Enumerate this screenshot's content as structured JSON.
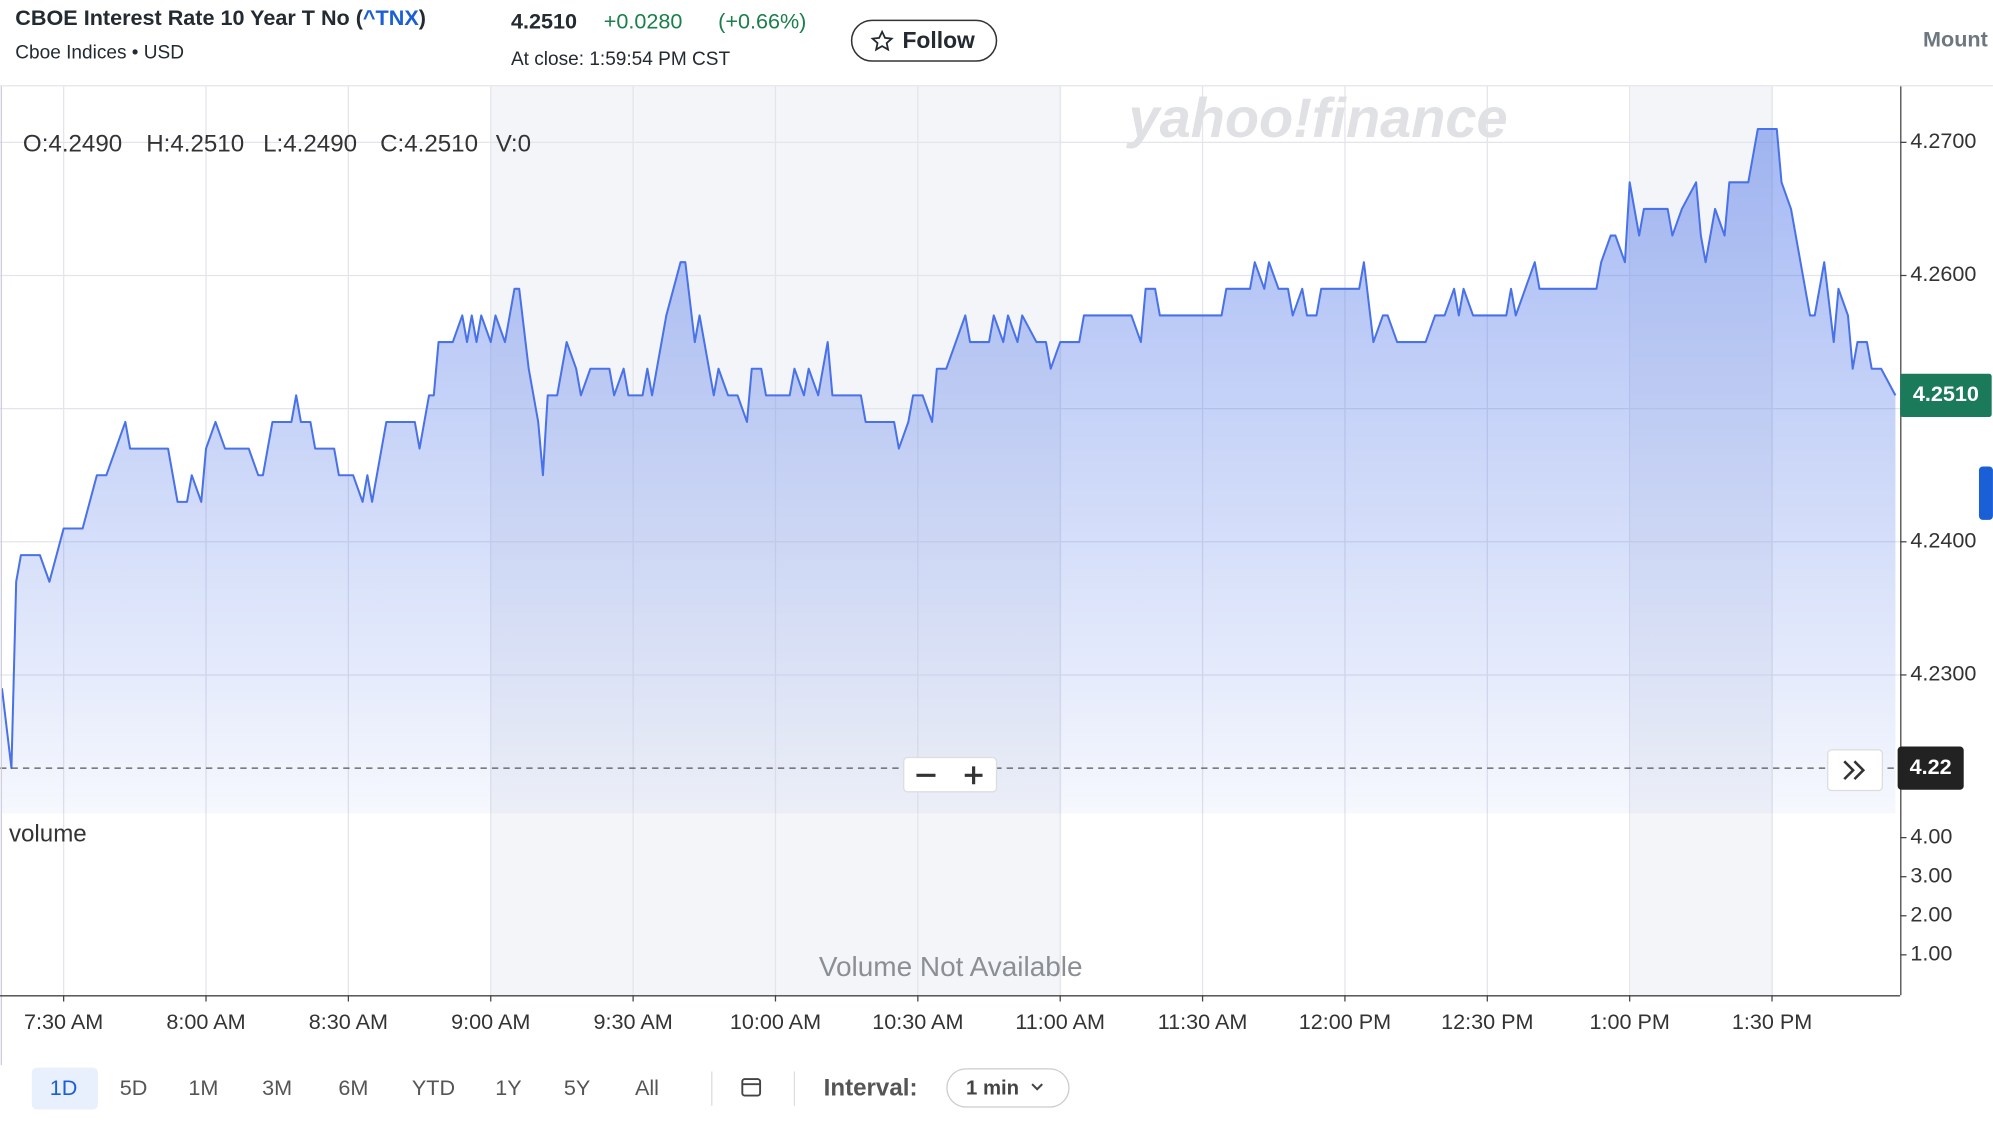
{
  "header": {
    "title": "CBOE Interest Rate 10 Year T No (",
    "symbol": "^TNX",
    "title_end": ")",
    "subtitle": "Cboe Indices • USD",
    "price": "4.2510",
    "change": "+0.0280",
    "change_percent": "(+0.66%)",
    "close_time": "At close: 1:59:54 PM CST",
    "follow": "Follow",
    "next_tab": "Mount"
  },
  "chart_data": {
    "type": "line",
    "watermark": "yahoo!finance",
    "ohlc": [
      "O:4.2490",
      "H:4.2510",
      "L:4.2490",
      "C:4.2510",
      "V:0"
    ],
    "x": [
      437,
      439,
      440,
      441,
      445,
      447,
      450,
      454,
      457,
      459,
      463,
      464,
      472,
      474,
      476,
      477,
      479,
      480,
      482,
      484,
      489,
      491,
      492,
      494,
      498,
      499,
      500,
      502,
      503,
      507,
      508,
      511,
      513,
      514,
      515,
      517,
      518,
      524,
      525,
      527,
      528,
      529,
      532,
      534,
      535,
      536,
      537,
      538,
      540,
      541,
      543,
      545,
      546,
      548,
      550,
      551,
      552,
      554,
      556,
      558,
      559,
      561,
      565,
      566,
      568,
      569,
      572,
      573,
      574,
      575,
      577,
      580,
      581,
      583,
      584,
      586,
      587,
      588,
      590,
      592,
      594,
      595,
      597,
      598,
      603,
      604,
      606,
      607,
      609,
      611,
      612,
      618,
      619,
      625,
      626,
      628,
      629,
      631,
      633,
      634,
      636,
      638,
      640,
      641,
      645,
      646,
      648,
      649,
      651,
      652,
      655,
      657,
      658,
      660,
      664,
      665,
      675,
      677,
      678,
      680,
      681,
      694,
      695,
      700,
      701,
      703,
      704,
      706,
      708,
      709,
      711,
      712,
      714,
      715,
      723,
      724,
      726,
      728,
      729,
      731,
      737,
      739,
      741,
      743,
      744,
      745,
      747,
      754,
      755,
      756,
      760,
      761,
      773,
      774,
      776,
      777,
      779,
      780,
      782,
      783,
      788,
      789,
      791,
      794,
      795,
      796,
      798,
      800,
      801,
      805,
      807,
      810,
      811,
      812,
      814,
      816,
      818,
      819,
      821,
      823,
      824,
      826,
      827,
      828,
      830,
      831,
      833,
      836
    ],
    "series": [
      {
        "name": "^TNX",
        "color": "#4a72e8",
        "values": [
          4.229,
          4.223,
          4.237,
          4.239,
          4.239,
          4.237,
          4.241,
          4.241,
          4.245,
          4.245,
          4.249,
          4.247,
          4.247,
          4.243,
          4.243,
          4.245,
          4.243,
          4.247,
          4.249,
          4.247,
          4.247,
          4.245,
          4.245,
          4.249,
          4.249,
          4.251,
          4.249,
          4.249,
          4.247,
          4.247,
          4.245,
          4.245,
          4.243,
          4.245,
          4.243,
          4.247,
          4.249,
          4.249,
          4.247,
          4.251,
          4.251,
          4.255,
          4.255,
          4.257,
          4.255,
          4.257,
          4.255,
          4.257,
          4.255,
          4.257,
          4.255,
          4.259,
          4.259,
          4.253,
          4.249,
          4.245,
          4.251,
          4.251,
          4.255,
          4.253,
          4.251,
          4.253,
          4.253,
          4.251,
          4.253,
          4.251,
          4.251,
          4.253,
          4.251,
          4.253,
          4.257,
          4.261,
          4.261,
          4.255,
          4.257,
          4.253,
          4.251,
          4.253,
          4.251,
          4.251,
          4.249,
          4.253,
          4.253,
          4.251,
          4.251,
          4.253,
          4.251,
          4.253,
          4.251,
          4.255,
          4.251,
          4.251,
          4.249,
          4.249,
          4.247,
          4.249,
          4.251,
          4.251,
          4.249,
          4.253,
          4.253,
          4.255,
          4.257,
          4.255,
          4.255,
          4.257,
          4.255,
          4.257,
          4.255,
          4.257,
          4.255,
          4.255,
          4.253,
          4.255,
          4.255,
          4.257,
          4.257,
          4.255,
          4.259,
          4.259,
          4.257,
          4.257,
          4.259,
          4.259,
          4.261,
          4.259,
          4.261,
          4.259,
          4.259,
          4.257,
          4.259,
          4.257,
          4.257,
          4.259,
          4.259,
          4.261,
          4.255,
          4.257,
          4.257,
          4.255,
          4.255,
          4.257,
          4.257,
          4.259,
          4.257,
          4.259,
          4.257,
          4.257,
          4.259,
          4.257,
          4.261,
          4.259,
          4.259,
          4.261,
          4.263,
          4.263,
          4.261,
          4.267,
          4.263,
          4.265,
          4.265,
          4.263,
          4.265,
          4.267,
          4.263,
          4.261,
          4.265,
          4.263,
          4.267,
          4.267,
          4.271,
          4.271,
          4.271,
          4.267,
          4.265,
          4.261,
          4.257,
          4.257,
          4.261,
          4.255,
          4.259,
          4.257,
          4.253,
          4.255,
          4.255,
          4.253,
          4.253,
          4.251
        ]
      }
    ],
    "xlim": [
      436.6,
      837
    ],
    "xticks": [
      {
        "value": 450,
        "label": "7:30 AM"
      },
      {
        "value": 480,
        "label": "8:00 AM"
      },
      {
        "value": 510,
        "label": "8:30 AM"
      },
      {
        "value": 540,
        "label": "9:00 AM"
      },
      {
        "value": 570,
        "label": "9:30 AM"
      },
      {
        "value": 600,
        "label": "10:00 AM"
      },
      {
        "value": 630,
        "label": "10:30 AM"
      },
      {
        "value": 660,
        "label": "11:00 AM"
      },
      {
        "value": 690,
        "label": "11:30 AM"
      },
      {
        "value": 720,
        "label": "12:00 PM"
      },
      {
        "value": 750,
        "label": "12:30 PM"
      },
      {
        "value": 780,
        "label": "1:00 PM"
      },
      {
        "value": 810,
        "label": "1:30 PM"
      }
    ],
    "ylim": [
      4.2196,
      4.2742
    ],
    "yticks": [
      {
        "value": 4.27,
        "label": "4.2700"
      },
      {
        "value": 4.26,
        "label": "4.2600"
      },
      {
        "value": 4.25,
        "label": "4.2500"
      },
      {
        "value": 4.24,
        "label": "4.2400"
      },
      {
        "value": 4.23,
        "label": "4.2300"
      }
    ],
    "grid": true,
    "last_price": {
      "value": 4.251,
      "label": "4.2510",
      "color": "#1a7a5a"
    },
    "previous_close": {
      "value": 4.223,
      "label": "4.22",
      "color": "#222222"
    },
    "volume": {
      "label": "volume",
      "note": "Volume Not Available",
      "ylim": [
        0,
        4.62
      ],
      "yticks": [
        {
          "value": 4,
          "label": "4.00"
        },
        {
          "value": 3,
          "label": "3.00"
        },
        {
          "value": 2,
          "label": "2.00"
        },
        {
          "value": 1,
          "label": "1.00"
        }
      ]
    }
  },
  "toolbar": {
    "ranges": [
      "1D",
      "5D",
      "1M",
      "3M",
      "6M",
      "YTD",
      "1Y",
      "5Y",
      "All"
    ],
    "selected": "1D",
    "interval_label": "Interval:",
    "interval": "1 min"
  }
}
